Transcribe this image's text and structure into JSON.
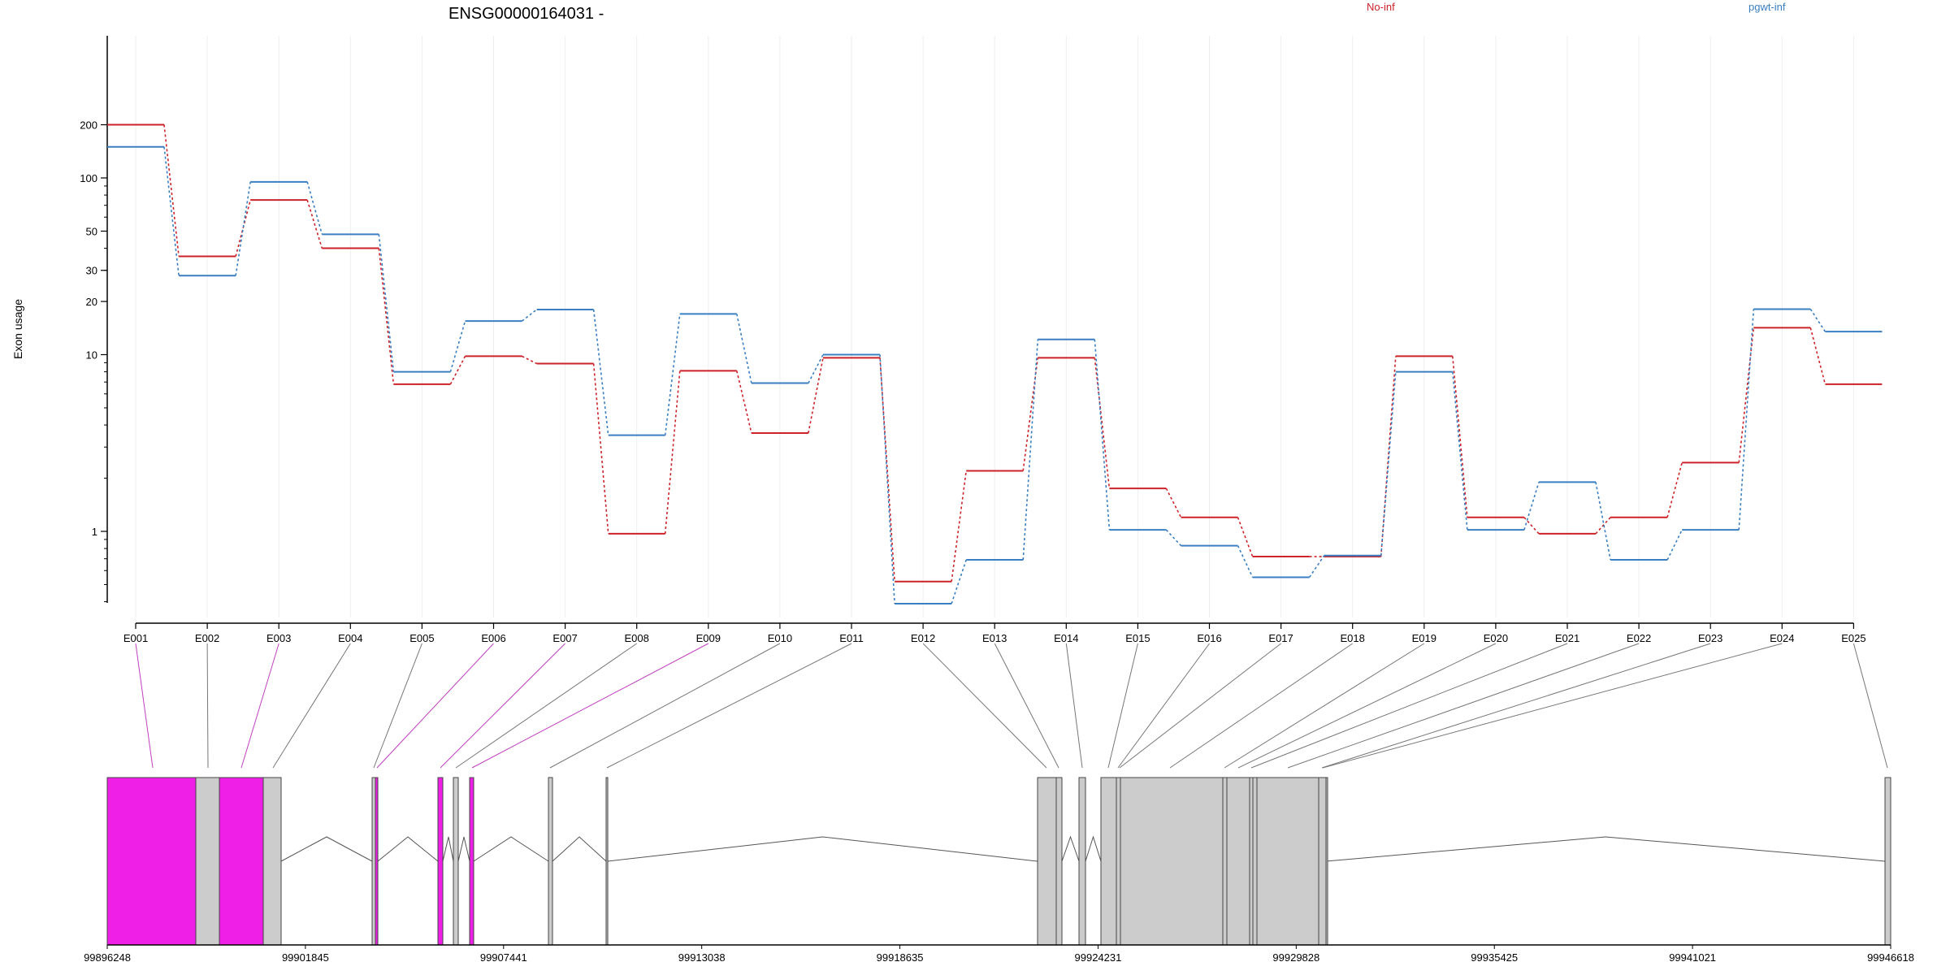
{
  "chart_data": {
    "type": "line",
    "title": "ENSG00000164031 -",
    "ylabel": "Exon usage",
    "xlabel": "",
    "y_scale": "log",
    "ylim": [
      0.38,
      280
    ],
    "y_ticks": [
      1,
      10,
      20,
      30,
      50,
      100,
      200
    ],
    "y_tick_labels": [
      "1",
      "10",
      "20",
      "30",
      "50",
      "100",
      "200"
    ],
    "grid": "vertical lines at exons",
    "legend_position": "top",
    "categories": [
      "E001",
      "E002",
      "E003",
      "E004",
      "E005",
      "E006",
      "E007",
      "E008",
      "E009",
      "E010",
      "E011",
      "E012",
      "E013",
      "E014",
      "E015",
      "E016",
      "E017",
      "E018",
      "E019",
      "E020",
      "E021",
      "E022",
      "E023",
      "E024",
      "E025"
    ],
    "series": [
      {
        "name": "No-inf",
        "color": "#cc2229",
        "values": [
          200,
          36,
          75,
          40,
          6.8,
          9.8,
          8.9,
          0.97,
          8.1,
          3.6,
          9.6,
          0.52,
          2.2,
          9.6,
          1.75,
          1.2,
          0.72,
          0.72,
          9.8,
          1.2,
          0.97,
          1.2,
          2.45,
          14.2,
          6.8
        ]
      },
      {
        "name": "pgwt-inf",
        "color": "#3a7fc1",
        "values": [
          150,
          28,
          95,
          48,
          8.0,
          15.5,
          18.0,
          3.5,
          17.0,
          6.9,
          10.0,
          0.39,
          0.69,
          12.2,
          1.02,
          0.83,
          0.55,
          0.73,
          8.0,
          1.02,
          1.9,
          0.69,
          1.02,
          18.1,
          13.5
        ]
      }
    ],
    "genomic_ticks": [
      "99896248",
      "99901845",
      "99907441",
      "99913038",
      "99918635",
      "99924231",
      "99929828",
      "99935425",
      "99941021",
      "99946618"
    ],
    "gene_model": {
      "exon_fill": "#cccccc",
      "highlight_fill": "#f01fe8",
      "line_color": "#777777",
      "highlight_line_color": "#c040c0",
      "highlighted_exons": [
        "E001",
        "E003",
        "E006",
        "E007",
        "E009"
      ]
    }
  }
}
